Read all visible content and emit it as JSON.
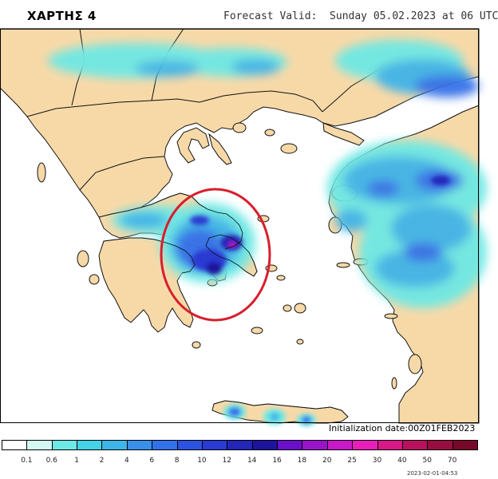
{
  "header": {
    "title": "ΧΑΡΤΗΣ 4",
    "forecast_valid": "Forecast Valid:  Sunday 05.02.2023 at 06 UTC"
  },
  "footer": {
    "initialization": "Initialization date:00Z01FEB2023",
    "timestamp": "2023-02-01-04:53"
  },
  "colors": {
    "land": "#f7d9a8",
    "sea": "#ffffff",
    "border": "#111111",
    "highlight_circle": "#d81e2c"
  },
  "legend": {
    "scale": [
      {
        "label": "",
        "color": "#ffffff"
      },
      {
        "label": "0.1",
        "color": "#d4f8f4"
      },
      {
        "label": "0.6",
        "color": "#6ee8e4"
      },
      {
        "label": "1",
        "color": "#44d2e6"
      },
      {
        "label": "2",
        "color": "#3fb4e8"
      },
      {
        "label": "4",
        "color": "#3a8fe8"
      },
      {
        "label": "6",
        "color": "#3470e8"
      },
      {
        "label": "8",
        "color": "#2e52e0"
      },
      {
        "label": "10",
        "color": "#2a3ad2"
      },
      {
        "label": "12",
        "color": "#2426b8"
      },
      {
        "label": "14",
        "color": "#1e149c"
      },
      {
        "label": "16",
        "color": "#6a10c8"
      },
      {
        "label": "18",
        "color": "#9814c8"
      },
      {
        "label": "20",
        "color": "#c818c8"
      },
      {
        "label": "25",
        "color": "#e81eb8"
      },
      {
        "label": "30",
        "color": "#d81886"
      },
      {
        "label": "40",
        "color": "#b8125e"
      },
      {
        "label": "50",
        "color": "#980e40"
      },
      {
        "label": "70",
        "color": "#78082a"
      }
    ]
  }
}
